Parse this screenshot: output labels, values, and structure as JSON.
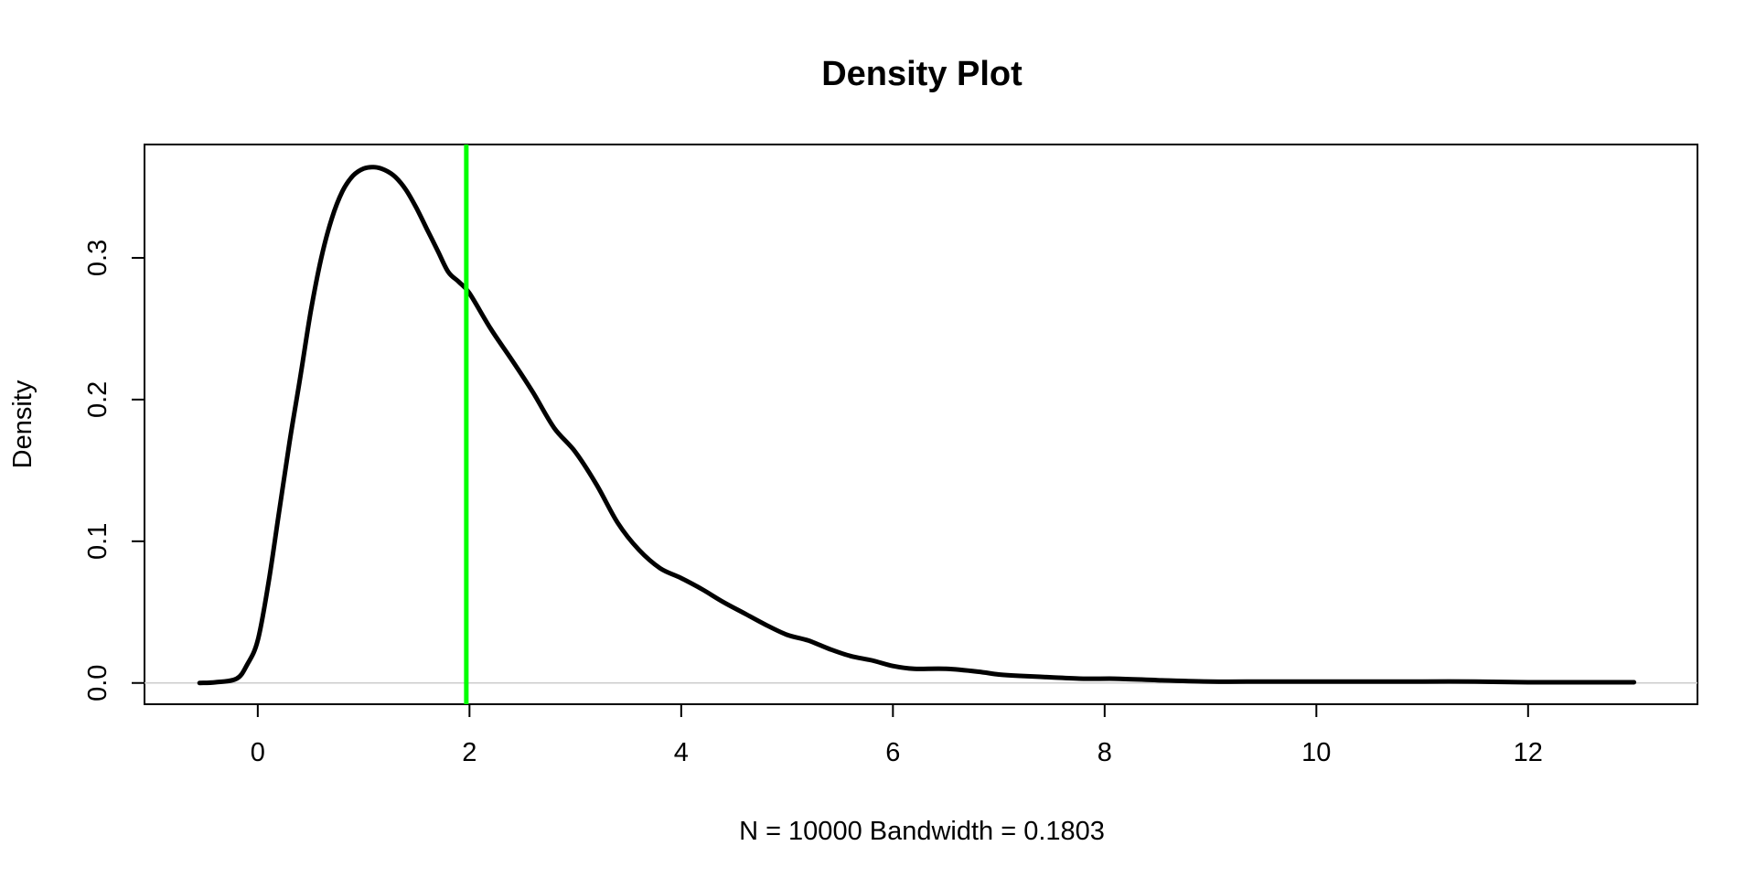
{
  "chart_data": {
    "type": "line",
    "title": "Density Plot",
    "xlabel": "N = 10000   Bandwidth = 0.1803",
    "ylabel": "Density",
    "xlim": [
      -1.07,
      13.6
    ],
    "ylim": [
      -0.015,
      0.38
    ],
    "x_ticks": [
      0,
      2,
      4,
      6,
      8,
      10,
      12
    ],
    "x_tick_labels": [
      "0",
      "2",
      "4",
      "6",
      "8",
      "10",
      "12"
    ],
    "y_ticks": [
      0.0,
      0.1,
      0.2,
      0.3
    ],
    "y_tick_labels": [
      "0.0",
      "0.1",
      "0.2",
      "0.3"
    ],
    "grid": false,
    "baseline": {
      "y": 0,
      "color": "#cccccc"
    },
    "series": [
      {
        "color": "#000000",
        "x": [
          -0.55,
          -0.4,
          -0.2,
          -0.1,
          0.0,
          0.1,
          0.2,
          0.3,
          0.4,
          0.5,
          0.6,
          0.7,
          0.8,
          0.9,
          1.0,
          1.1,
          1.2,
          1.3,
          1.4,
          1.5,
          1.6,
          1.7,
          1.8,
          1.9,
          2.0,
          2.2,
          2.4,
          2.6,
          2.8,
          3.0,
          3.2,
          3.4,
          3.6,
          3.8,
          4.0,
          4.2,
          4.4,
          4.6,
          4.8,
          5.0,
          5.2,
          5.4,
          5.6,
          5.8,
          6.0,
          6.2,
          6.5,
          6.8,
          7.0,
          7.2,
          7.5,
          7.8,
          8.1,
          8.5,
          9.0,
          9.5,
          10.0,
          10.5,
          11.0,
          11.5,
          12.0,
          12.5,
          13.0
        ],
        "y": [
          0.0,
          0.0005,
          0.003,
          0.013,
          0.03,
          0.07,
          0.12,
          0.17,
          0.215,
          0.262,
          0.3,
          0.328,
          0.347,
          0.358,
          0.363,
          0.364,
          0.362,
          0.357,
          0.348,
          0.335,
          0.32,
          0.305,
          0.29,
          0.283,
          0.275,
          0.25,
          0.228,
          0.205,
          0.18,
          0.163,
          0.14,
          0.113,
          0.094,
          0.081,
          0.074,
          0.066,
          0.057,
          0.049,
          0.041,
          0.034,
          0.03,
          0.024,
          0.019,
          0.016,
          0.012,
          0.01,
          0.01,
          0.008,
          0.006,
          0.005,
          0.004,
          0.003,
          0.003,
          0.002,
          0.001,
          0.001,
          0.001,
          0.001,
          0.001,
          0.001,
          0.0005,
          0.0005,
          0.0005
        ]
      }
    ],
    "vline": {
      "x": 1.97,
      "color": "#00ff00"
    }
  }
}
